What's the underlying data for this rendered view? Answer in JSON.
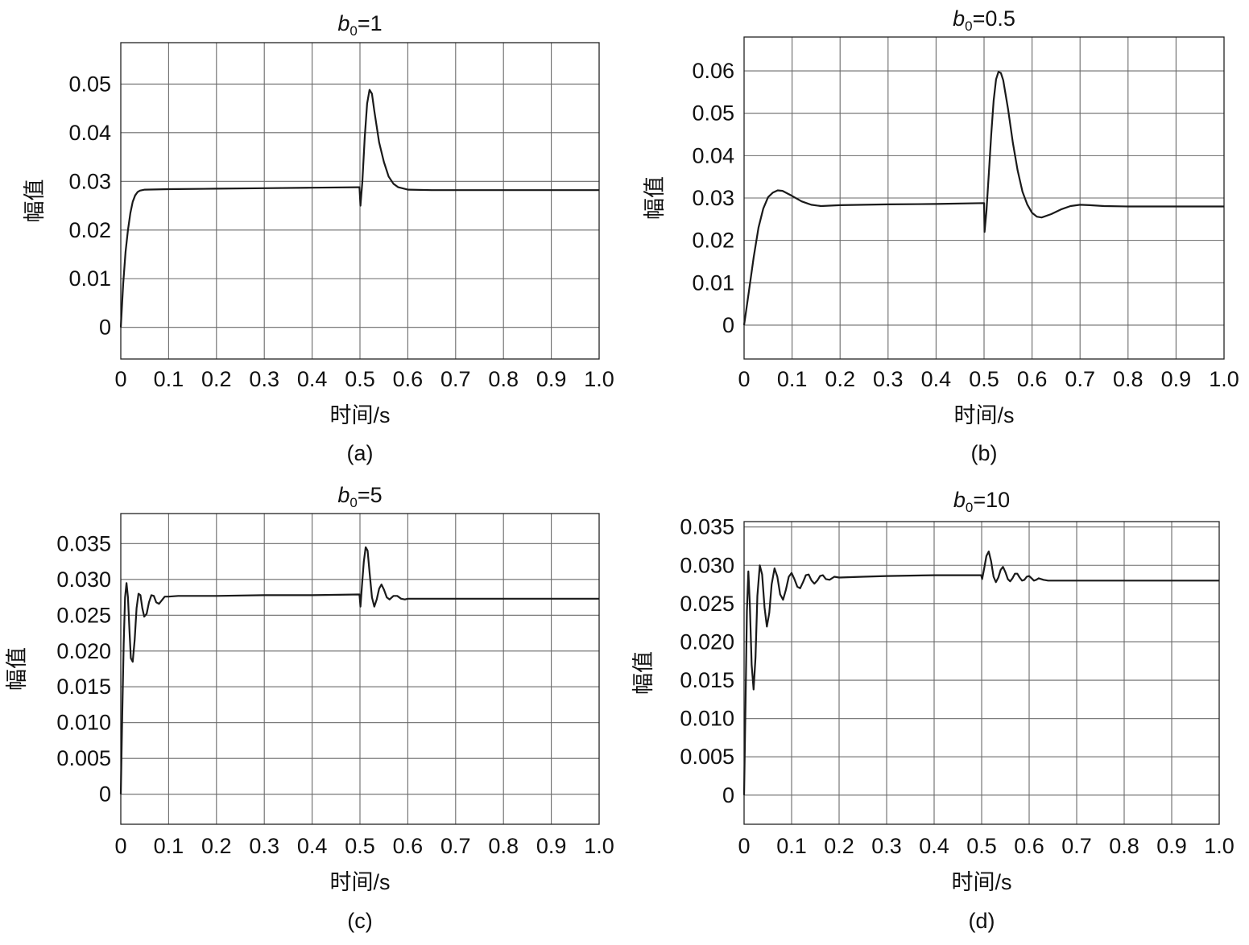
{
  "chart_data": [
    {
      "type": "line",
      "title_prefix": "b",
      "title_sub": "0",
      "title_suffix": "=1",
      "xlabel": "时间/s",
      "ylabel": "幅值",
      "caption": "(a)",
      "xlim": [
        0,
        1.0
      ],
      "ylim": [
        -0.0065,
        0.0585
      ],
      "xticks": [
        0,
        0.1,
        0.2,
        0.3,
        0.4,
        0.5,
        0.6,
        0.7,
        0.8,
        0.9,
        1.0
      ],
      "xtick_labels": [
        "0",
        "0.1",
        "0.2",
        "0.3",
        "0.4",
        "0.5",
        "0.6",
        "0.7",
        "0.8",
        "0.9",
        "1.0"
      ],
      "yticks": [
        0,
        0.01,
        0.02,
        0.03,
        0.04,
        0.05
      ],
      "ytick_labels": [
        "0",
        "0.01",
        "0.02",
        "0.03",
        "0.04",
        "0.05"
      ],
      "grid": true,
      "series": [
        {
          "x": [
            0,
            0.005,
            0.01,
            0.015,
            0.02,
            0.025,
            0.03,
            0.035,
            0.04,
            0.05,
            0.1,
            0.2,
            0.3,
            0.4,
            0.497,
            0.499,
            0.501,
            0.505,
            0.51,
            0.515,
            0.52,
            0.525,
            0.53,
            0.54,
            0.55,
            0.56,
            0.57,
            0.58,
            0.6,
            0.65,
            0.7,
            0.8,
            0.9,
            1.0
          ],
          "y": [
            0,
            0.009,
            0.0155,
            0.02,
            0.0235,
            0.0258,
            0.0271,
            0.0278,
            0.0281,
            0.0283,
            0.0284,
            0.0285,
            0.0286,
            0.0287,
            0.0288,
            0.0288,
            0.025,
            0.03,
            0.039,
            0.046,
            0.0488,
            0.048,
            0.0445,
            0.038,
            0.034,
            0.031,
            0.0295,
            0.0288,
            0.0283,
            0.0282,
            0.0282,
            0.0282,
            0.0282,
            0.0282
          ]
        }
      ]
    },
    {
      "type": "line",
      "title_prefix": "b",
      "title_sub": "0",
      "title_suffix": "=0.5",
      "xlabel": "时间/s",
      "ylabel": "幅值",
      "caption": "(b)",
      "xlim": [
        0,
        1.0
      ],
      "ylim": [
        -0.008,
        0.068
      ],
      "xticks": [
        0,
        0.1,
        0.2,
        0.3,
        0.4,
        0.5,
        0.6,
        0.7,
        0.8,
        0.9,
        1.0
      ],
      "xtick_labels": [
        "0",
        "0.1",
        "0.2",
        "0.3",
        "0.4",
        "0.5",
        "0.6",
        "0.7",
        "0.8",
        "0.9",
        "1.0"
      ],
      "yticks": [
        0,
        0.01,
        0.02,
        0.03,
        0.04,
        0.05,
        0.06
      ],
      "ytick_labels": [
        "0",
        "0.01",
        "0.02",
        "0.03",
        "0.04",
        "0.05",
        "0.06"
      ],
      "grid": true,
      "series": [
        {
          "x": [
            0,
            0.01,
            0.02,
            0.03,
            0.04,
            0.05,
            0.06,
            0.07,
            0.08,
            0.1,
            0.12,
            0.14,
            0.16,
            0.2,
            0.3,
            0.4,
            0.5,
            0.501,
            0.505,
            0.51,
            0.515,
            0.52,
            0.525,
            0.53,
            0.535,
            0.54,
            0.55,
            0.56,
            0.57,
            0.58,
            0.59,
            0.6,
            0.61,
            0.62,
            0.64,
            0.66,
            0.68,
            0.7,
            0.72,
            0.75,
            0.8,
            0.9,
            1.0
          ],
          "y": [
            0,
            0.008,
            0.016,
            0.023,
            0.0275,
            0.0302,
            0.0313,
            0.0318,
            0.0317,
            0.0305,
            0.0292,
            0.0284,
            0.0281,
            0.0283,
            0.0285,
            0.0286,
            0.0288,
            0.022,
            0.027,
            0.036,
            0.045,
            0.053,
            0.058,
            0.0598,
            0.0595,
            0.0578,
            0.051,
            0.043,
            0.0365,
            0.0315,
            0.0285,
            0.0265,
            0.0256,
            0.0254,
            0.0262,
            0.0273,
            0.0281,
            0.0284,
            0.0283,
            0.0281,
            0.028,
            0.028,
            0.028
          ]
        }
      ]
    },
    {
      "type": "line",
      "title_prefix": "b",
      "title_sub": "0",
      "title_suffix": "=5",
      "xlabel": "时间/s",
      "ylabel": "幅值",
      "caption": "(c)",
      "xlim": [
        0,
        1.0
      ],
      "ylim": [
        -0.0042,
        0.0392
      ],
      "xticks": [
        0,
        0.1,
        0.2,
        0.3,
        0.4,
        0.5,
        0.6,
        0.7,
        0.8,
        0.9,
        1.0
      ],
      "xtick_labels": [
        "0",
        "0.1",
        "0.2",
        "0.3",
        "0.4",
        "0.5",
        "0.6",
        "0.7",
        "0.8",
        "0.9",
        "1.0"
      ],
      "yticks": [
        0,
        0.005,
        0.01,
        0.015,
        0.02,
        0.025,
        0.03,
        0.035
      ],
      "ytick_labels": [
        "0",
        "0.005",
        "0.010",
        "0.015",
        "0.020",
        "0.025",
        "0.030",
        "0.035"
      ],
      "grid": true,
      "series": [
        {
          "x": [
            0,
            0.003,
            0.006,
            0.009,
            0.012,
            0.015,
            0.018,
            0.021,
            0.025,
            0.029,
            0.033,
            0.037,
            0.041,
            0.045,
            0.049,
            0.054,
            0.059,
            0.064,
            0.069,
            0.074,
            0.08,
            0.086,
            0.092,
            0.1,
            0.12,
            0.15,
            0.2,
            0.3,
            0.4,
            0.499,
            0.501,
            0.504,
            0.508,
            0.512,
            0.516,
            0.52,
            0.525,
            0.53,
            0.535,
            0.54,
            0.545,
            0.55,
            0.556,
            0.562,
            0.57,
            0.578,
            0.586,
            0.594,
            0.6,
            0.65,
            0.7,
            0.8,
            0.9,
            1.0
          ],
          "y": [
            0,
            0.011,
            0.021,
            0.0275,
            0.0295,
            0.0275,
            0.023,
            0.019,
            0.0185,
            0.0215,
            0.026,
            0.028,
            0.0278,
            0.026,
            0.0248,
            0.0252,
            0.0268,
            0.0278,
            0.0277,
            0.0268,
            0.0266,
            0.0271,
            0.0276,
            0.0276,
            0.0277,
            0.0277,
            0.0277,
            0.0278,
            0.0278,
            0.0279,
            0.0262,
            0.029,
            0.0325,
            0.0345,
            0.034,
            0.031,
            0.0275,
            0.0262,
            0.0272,
            0.0287,
            0.0293,
            0.0286,
            0.0275,
            0.0272,
            0.0277,
            0.0277,
            0.0273,
            0.0272,
            0.0273,
            0.0273,
            0.0273,
            0.0273,
            0.0273,
            0.0273
          ]
        }
      ]
    },
    {
      "type": "line",
      "title_prefix": "b",
      "title_sub": "0",
      "title_suffix": "=10",
      "xlabel": "时间/s",
      "ylabel": "幅值",
      "caption": "(d)",
      "xlim": [
        0,
        1.0
      ],
      "ylim": [
        -0.0038,
        0.0357
      ],
      "xticks": [
        0,
        0.1,
        0.2,
        0.3,
        0.4,
        0.5,
        0.6,
        0.7,
        0.8,
        0.9,
        1.0
      ],
      "xtick_labels": [
        "0",
        "0.1",
        "0.2",
        "0.3",
        "0.4",
        "0.5",
        "0.6",
        "0.7",
        "0.8",
        "0.9",
        "1.0"
      ],
      "yticks": [
        0,
        0.005,
        0.01,
        0.015,
        0.02,
        0.025,
        0.03,
        0.035
      ],
      "ytick_labels": [
        "0",
        "0.005",
        "0.010",
        "0.015",
        "0.020",
        "0.025",
        "0.030",
        "0.035"
      ],
      "grid": true,
      "series": [
        {
          "x": [
            0,
            0.003,
            0.006,
            0.009,
            0.012,
            0.016,
            0.02,
            0.024,
            0.028,
            0.033,
            0.038,
            0.043,
            0.048,
            0.053,
            0.058,
            0.064,
            0.07,
            0.076,
            0.082,
            0.088,
            0.094,
            0.1,
            0.106,
            0.112,
            0.118,
            0.124,
            0.13,
            0.136,
            0.142,
            0.148,
            0.154,
            0.16,
            0.166,
            0.172,
            0.18,
            0.19,
            0.2,
            0.25,
            0.3,
            0.4,
            0.499,
            0.501,
            0.505,
            0.51,
            0.515,
            0.52,
            0.525,
            0.53,
            0.535,
            0.54,
            0.545,
            0.55,
            0.555,
            0.56,
            0.565,
            0.57,
            0.575,
            0.58,
            0.585,
            0.59,
            0.595,
            0.6,
            0.605,
            0.61,
            0.615,
            0.62,
            0.63,
            0.64,
            0.65,
            0.7,
            0.8,
            0.9,
            1.0
          ],
          "y": [
            0,
            0.012,
            0.024,
            0.0292,
            0.025,
            0.017,
            0.0138,
            0.018,
            0.026,
            0.03,
            0.0288,
            0.0245,
            0.022,
            0.0238,
            0.0275,
            0.0296,
            0.0285,
            0.0262,
            0.0255,
            0.0268,
            0.0285,
            0.029,
            0.0282,
            0.0272,
            0.027,
            0.0278,
            0.0287,
            0.0288,
            0.028,
            0.0276,
            0.028,
            0.0286,
            0.0287,
            0.0282,
            0.0281,
            0.0285,
            0.0284,
            0.0285,
            0.0286,
            0.0287,
            0.0287,
            0.0282,
            0.0295,
            0.0312,
            0.0318,
            0.0305,
            0.0285,
            0.0278,
            0.0284,
            0.0294,
            0.0298,
            0.0291,
            0.0282,
            0.0279,
            0.0283,
            0.0289,
            0.0289,
            0.0284,
            0.028,
            0.0281,
            0.0285,
            0.0286,
            0.0283,
            0.028,
            0.0281,
            0.0283,
            0.0281,
            0.028,
            0.028,
            0.028,
            0.028,
            0.028,
            0.028
          ]
        }
      ]
    }
  ]
}
